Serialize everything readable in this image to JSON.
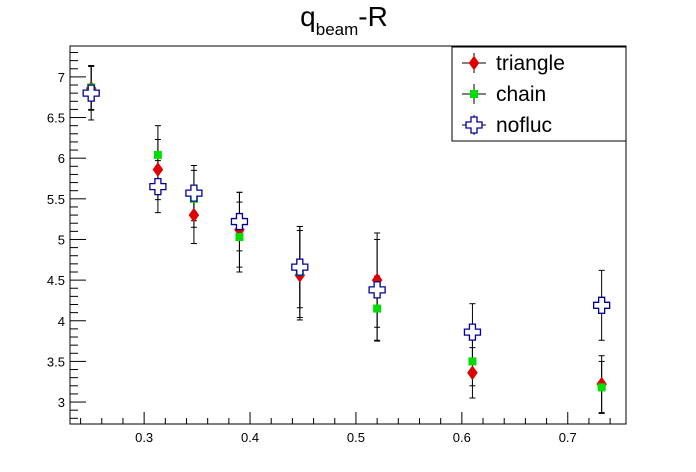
{
  "chart_data": {
    "type": "scatter",
    "title": {
      "main": "q",
      "subscript": "beam",
      "suffix": "-R"
    },
    "xlabel": "",
    "ylabel": "",
    "xlim": [
      0.23,
      0.755
    ],
    "ylim": [
      2.73,
      7.38
    ],
    "x_ticks": [
      {
        "value": 0.3,
        "label": "0.3"
      },
      {
        "value": 0.4,
        "label": "0.4"
      },
      {
        "value": 0.5,
        "label": "0.5"
      },
      {
        "value": 0.6,
        "label": "0.6"
      },
      {
        "value": 0.7,
        "label": "0.7"
      }
    ],
    "y_ticks": [
      {
        "value": 3,
        "label": "3"
      },
      {
        "value": 3.5,
        "label": "3.5"
      },
      {
        "value": 4,
        "label": "4"
      },
      {
        "value": 4.5,
        "label": "4.5"
      },
      {
        "value": 5,
        "label": "5"
      },
      {
        "value": 5.5,
        "label": "5.5"
      },
      {
        "value": 6,
        "label": "6"
      },
      {
        "value": 6.5,
        "label": "6.5"
      },
      {
        "value": 7,
        "label": "7"
      }
    ],
    "legend_position": "top-right",
    "grid": false,
    "series": [
      {
        "name": "triangle",
        "marker": "diamond",
        "color": "#e00000",
        "points": [
          {
            "x": 0.25,
            "y": 6.86,
            "err": 0.27
          },
          {
            "x": 0.313,
            "y": 5.86,
            "err": 0.37
          },
          {
            "x": 0.347,
            "y": 5.3,
            "err": 0.35
          },
          {
            "x": 0.39,
            "y": 5.12,
            "err": 0.46
          },
          {
            "x": 0.447,
            "y": 4.56,
            "err": 0.55
          },
          {
            "x": 0.52,
            "y": 4.5,
            "err": 0.58
          },
          {
            "x": 0.61,
            "y": 3.36,
            "err": 0.31
          },
          {
            "x": 0.732,
            "y": 3.22,
            "err": 0.35
          }
        ]
      },
      {
        "name": "chain",
        "marker": "square",
        "color": "#00dd00",
        "points": [
          {
            "x": 0.25,
            "y": 6.87,
            "err": 0.27
          },
          {
            "x": 0.313,
            "y": 6.04,
            "err": 0.36
          },
          {
            "x": 0.347,
            "y": 5.5,
            "err": 0.35
          },
          {
            "x": 0.39,
            "y": 5.03,
            "err": 0.43
          },
          {
            "x": 0.447,
            "y": 4.6,
            "err": 0.56
          },
          {
            "x": 0.52,
            "y": 4.15,
            "err": 0.4
          },
          {
            "x": 0.61,
            "y": 3.5,
            "err": 0.3
          },
          {
            "x": 0.732,
            "y": 3.18,
            "err": 0.32
          }
        ]
      },
      {
        "name": "nofluc",
        "marker": "open-cross",
        "color": "#000099",
        "points": [
          {
            "x": 0.25,
            "y": 6.8,
            "err": 0.33
          },
          {
            "x": 0.313,
            "y": 5.65,
            "err": 0.32
          },
          {
            "x": 0.347,
            "y": 5.57,
            "err": 0.34
          },
          {
            "x": 0.39,
            "y": 5.22,
            "err": 0.36
          },
          {
            "x": 0.447,
            "y": 4.66,
            "err": 0.5
          },
          {
            "x": 0.52,
            "y": 4.38,
            "err": 0.62
          },
          {
            "x": 0.61,
            "y": 3.86,
            "err": 0.35
          },
          {
            "x": 0.732,
            "y": 4.19,
            "err": 0.43
          }
        ]
      }
    ]
  }
}
